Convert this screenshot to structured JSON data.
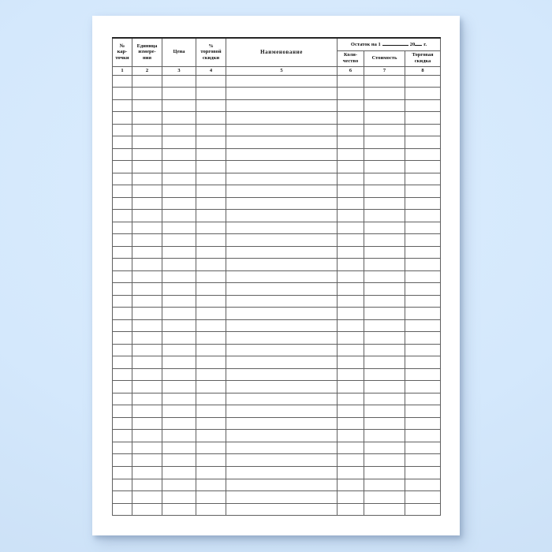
{
  "form": {
    "columns": [
      {
        "label": "№\nкар-\nточки",
        "number": "1"
      },
      {
        "label": "Единица\nизмере-\nния",
        "number": "2"
      },
      {
        "label": "Цена",
        "number": "3"
      },
      {
        "label": "%\nторговой\nскидки",
        "number": "4"
      },
      {
        "label": "Наименование",
        "number": "5"
      },
      {
        "label": "Коли-\nчество",
        "number": "6"
      },
      {
        "label": "Стоимость",
        "number": "7"
      },
      {
        "label": "Торговая\nскидка",
        "number": "8"
      }
    ],
    "balance_header": {
      "prefix": "Остаток на 1",
      "year": "20",
      "year_suffix": "г."
    },
    "body_row_count": 36,
    "colors": {
      "background": "#d4e8fc",
      "paper": "#ffffff",
      "grid_line": "#606060",
      "heavy_line": "#262626",
      "text": "#111111"
    }
  }
}
